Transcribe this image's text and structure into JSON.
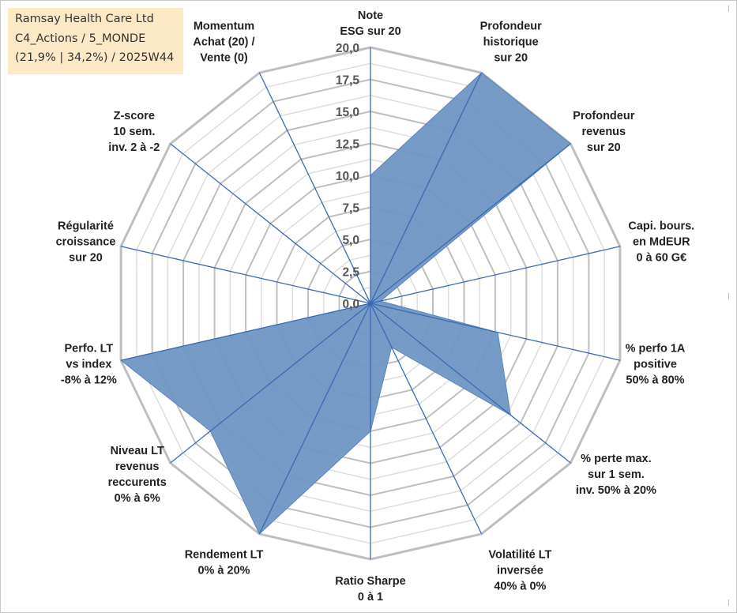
{
  "header": {
    "company": "Ramsay Health Care Ltd",
    "portfolio": "C4_Actions / 5_MONDE",
    "stats": "(21,9% | 34,2%) / 2025W44"
  },
  "colors": {
    "fill": "#6f96c3",
    "spoke": "#3a6ab5",
    "grid_major": "#bfbfbf",
    "grid_minor": "#dcdcdc"
  },
  "chart_data": {
    "type": "radar",
    "title": "",
    "range": [
      0,
      20
    ],
    "tick_labels": [
      "0,0",
      "2,5",
      "5,0",
      "7,5",
      "10,0",
      "12,5",
      "15,0",
      "17,5",
      "20,0"
    ],
    "axes": [
      {
        "lines": [
          "Note",
          "ESG sur 20"
        ]
      },
      {
        "lines": [
          "Profondeur",
          "historique",
          "sur 20"
        ]
      },
      {
        "lines": [
          "Profondeur",
          "revenus",
          "sur 20"
        ]
      },
      {
        "lines": [
          "Capi. bours.",
          "en MdEUR",
          "0 à 60 G€"
        ]
      },
      {
        "lines": [
          "% perfo 1A",
          "positive",
          "50% à 80%"
        ]
      },
      {
        "lines": [
          "% perte max.",
          "sur 1 sem.",
          "inv. 50% à 20%"
        ]
      },
      {
        "lines": [
          "Volatilité LT",
          "inversée",
          "40% à 0%"
        ]
      },
      {
        "lines": [
          "Ratio Sharpe",
          "0 à 1"
        ]
      },
      {
        "lines": [
          "Rendement LT",
          "0% à 20%"
        ]
      },
      {
        "lines": [
          "Niveau LT",
          "revenus",
          "reccurents",
          "0% à 6%"
        ]
      },
      {
        "lines": [
          "Perfo. LT",
          "vs index",
          "-8% à 12%"
        ]
      },
      {
        "lines": [
          "Régularité",
          "croissance",
          "sur 20"
        ]
      },
      {
        "lines": [
          "Z-score",
          "10 sem.",
          "inv. 2 à -2"
        ]
      },
      {
        "lines": [
          "Momentum",
          "Achat (20) /",
          "Vente (0)"
        ]
      }
    ],
    "series": [
      {
        "values": [
          10,
          20,
          20,
          0.8,
          10.2,
          14,
          3.8,
          10,
          20,
          16,
          20,
          0,
          0,
          0
        ]
      }
    ]
  }
}
